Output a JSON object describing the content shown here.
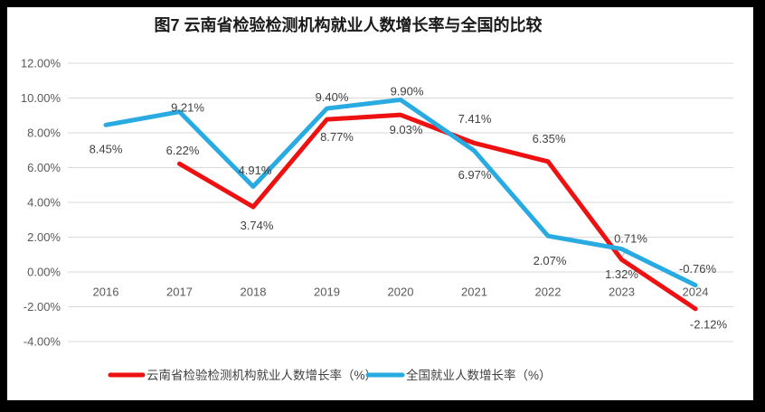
{
  "title": "图7  云南省检验检测机构就业人数增长率与全国的比较",
  "legend": [
    {
      "label": "云南省检验检测机构就业人数增长率（%）",
      "color": "#ED1111"
    },
    {
      "label": "全国就业人数增长率（%）",
      "color": "#29ABE2"
    }
  ],
  "colors": {
    "yunnan_series": "#ED1111",
    "national_series": "#29ABE2",
    "gridline": "#D9D9D9",
    "axis_text": "#595959",
    "data_label_text": "#404040",
    "title_text": "#1A1A1A",
    "chart_background": "#FFFFFF",
    "page_background": "#000000",
    "leader_line": "#BFBFBF"
  },
  "chart_data": {
    "type": "line",
    "categories": [
      "2016",
      "2017",
      "2018",
      "2019",
      "2020",
      "2021",
      "2022",
      "2023",
      "2024"
    ],
    "series": [
      {
        "name": "云南省检验检测机构就业人数增长率（%）",
        "color": "#ED1111",
        "values": [
          null,
          6.22,
          3.74,
          8.77,
          9.03,
          7.41,
          6.35,
          0.71,
          -2.12
        ]
      },
      {
        "name": "全国就业人数增长率（%）",
        "color": "#29ABE2",
        "values": [
          8.45,
          9.21,
          4.91,
          9.4,
          9.9,
          6.97,
          2.07,
          1.32,
          -0.76
        ]
      }
    ],
    "xlabel": "",
    "ylabel": "",
    "ylim": [
      -4,
      12
    ],
    "ytick_step": 2,
    "ytick_labels": [
      "12.00%",
      "10.00%",
      "8.00%",
      "6.00%",
      "4.00%",
      "2.00%",
      "0.00%",
      "-2.00%",
      "-4.00%"
    ],
    "grid": true,
    "legend_position": "bottom",
    "data_labels": true
  }
}
